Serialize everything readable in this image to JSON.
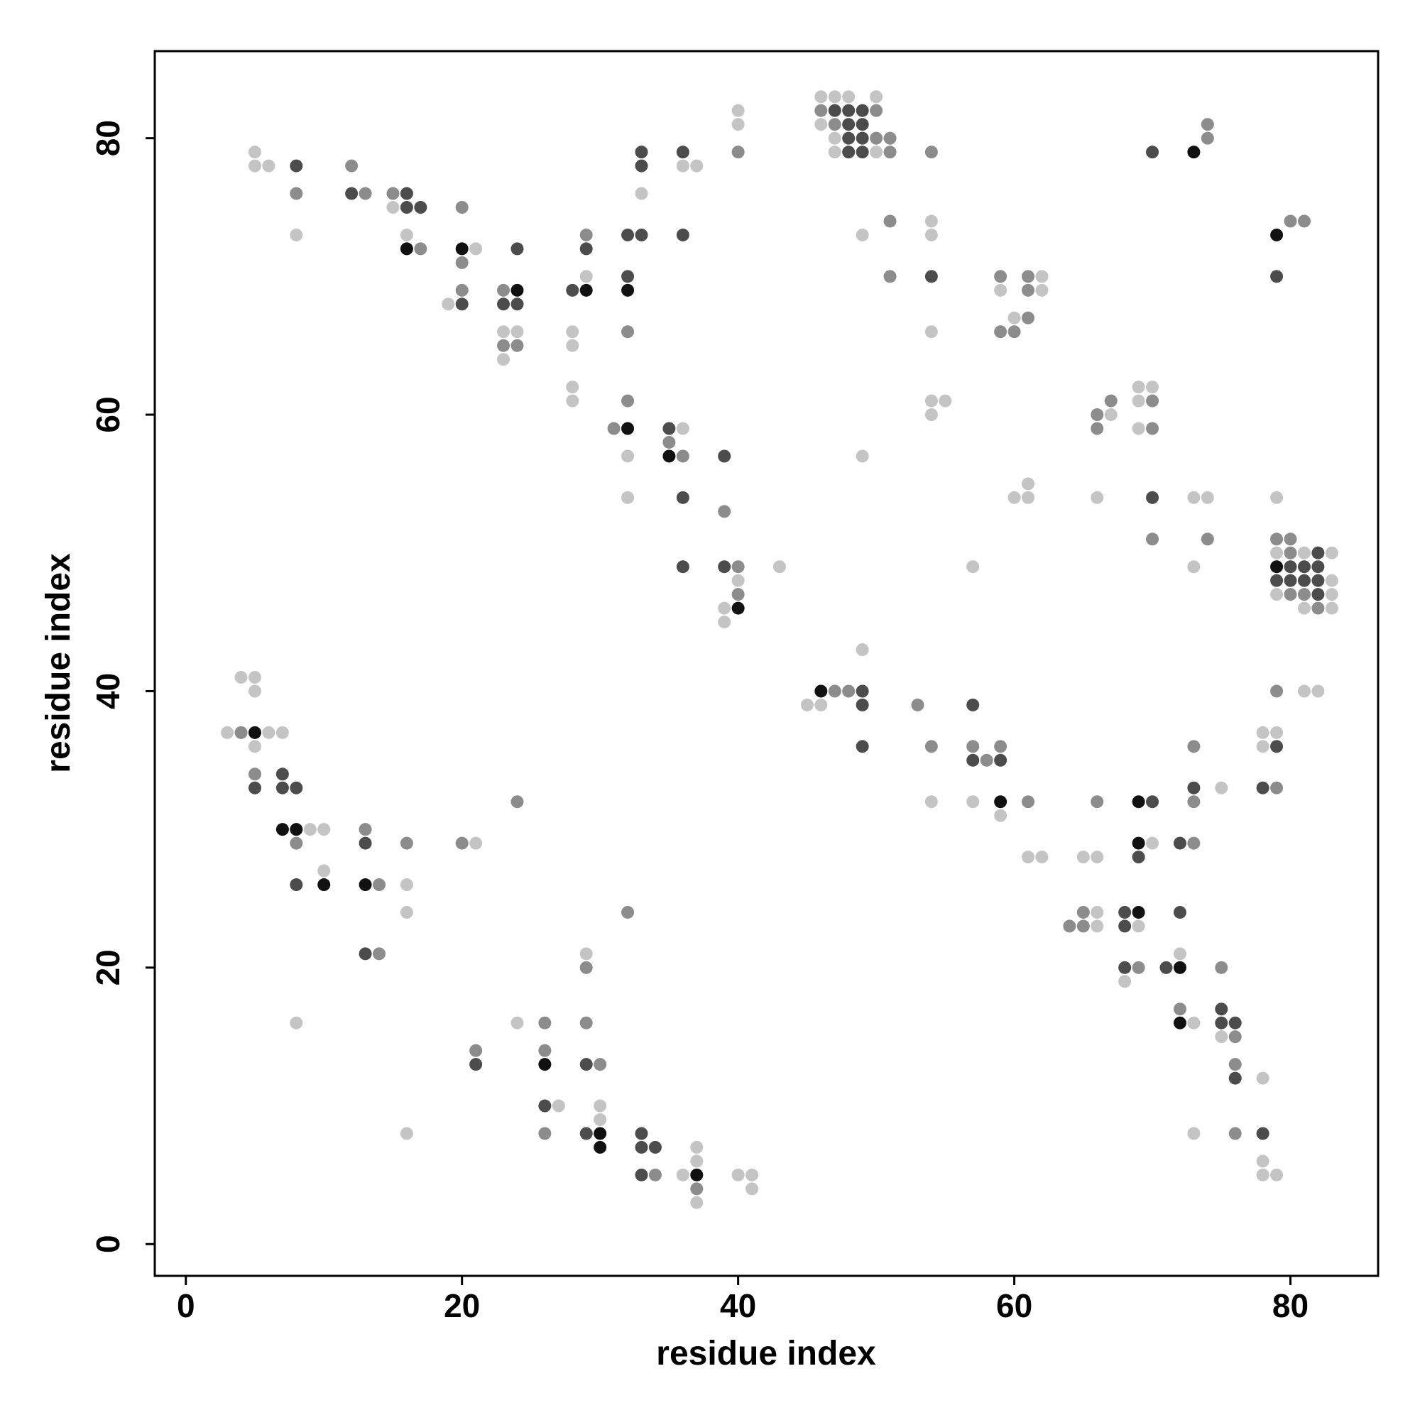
{
  "chart_data": {
    "type": "scatter",
    "x_label": "residue index",
    "y_label": "residue index",
    "xlim": [
      -2.25,
      86.35
    ],
    "ylim": [
      -2.3,
      86.3
    ],
    "xticks": [
      0,
      20,
      40,
      60,
      80
    ],
    "yticks": [
      0,
      20,
      40,
      60,
      80
    ],
    "series": [
      {
        "color": "#c4c4c4",
        "x": [
          46,
          47,
          48,
          50,
          40,
          46,
          40,
          47,
          5,
          47,
          50,
          5,
          6,
          36,
          37,
          33,
          15,
          54,
          8,
          16,
          49,
          54,
          21,
          29,
          62,
          59,
          62,
          19,
          60,
          23,
          24,
          28,
          54,
          28,
          23,
          28,
          69,
          70,
          28,
          54,
          55,
          69,
          54,
          67,
          36,
          69,
          32,
          49,
          61,
          32,
          60,
          61,
          66,
          73,
          74,
          79,
          79,
          81,
          83,
          43,
          57,
          73,
          40,
          83,
          79,
          83,
          39,
          81,
          83,
          39,
          49,
          4,
          5,
          5,
          81,
          82,
          45,
          46,
          3,
          6,
          7,
          78,
          79,
          5,
          78,
          75,
          54,
          57,
          59,
          9,
          10,
          21,
          70,
          61,
          62,
          65,
          66,
          10,
          16,
          16,
          66,
          66,
          69,
          29,
          72,
          68,
          8,
          24,
          73,
          75,
          78,
          27,
          30,
          30,
          16,
          73,
          37,
          37,
          78,
          36,
          40,
          41,
          78,
          79,
          41,
          37
        ],
        "y": [
          83,
          83,
          83,
          83,
          82,
          81,
          81,
          80,
          79,
          79,
          79,
          78,
          78,
          78,
          78,
          76,
          75,
          74,
          73,
          73,
          73,
          73,
          72,
          70,
          70,
          69,
          69,
          68,
          67,
          66,
          66,
          66,
          66,
          65,
          64,
          62,
          62,
          62,
          61,
          61,
          61,
          61,
          60,
          60,
          59,
          59,
          57,
          57,
          55,
          54,
          54,
          54,
          54,
          54,
          54,
          54,
          50,
          50,
          50,
          49,
          49,
          49,
          48,
          48,
          47,
          47,
          46,
          46,
          46,
          45,
          43,
          41,
          41,
          40,
          40,
          40,
          39,
          39,
          37,
          37,
          37,
          37,
          37,
          36,
          36,
          33,
          32,
          32,
          31,
          30,
          30,
          29,
          29,
          28,
          28,
          28,
          28,
          27,
          26,
          24,
          24,
          23,
          23,
          21,
          21,
          19,
          16,
          16,
          16,
          15,
          12,
          10,
          10,
          9,
          8,
          8,
          7,
          6,
          6,
          5,
          5,
          5,
          5,
          5,
          4,
          3
        ]
      },
      {
        "color": "#8c8c8c",
        "x": [
          46,
          50,
          47,
          74,
          50,
          51,
          74,
          40,
          51,
          54,
          12,
          8,
          13,
          15,
          20,
          51,
          80,
          81,
          29,
          17,
          20,
          51,
          59,
          61,
          20,
          23,
          61,
          61,
          32,
          59,
          60,
          23,
          24,
          32,
          67,
          70,
          66,
          31,
          66,
          70,
          35,
          36,
          39,
          70,
          74,
          79,
          80,
          80,
          40,
          40,
          80,
          81,
          82,
          47,
          48,
          79,
          53,
          4,
          54,
          57,
          59,
          73,
          58,
          5,
          79,
          24,
          61,
          66,
          73,
          13,
          8,
          16,
          20,
          73,
          14,
          32,
          65,
          64,
          65,
          14,
          29,
          69,
          75,
          72,
          26,
          29,
          76,
          21,
          26,
          30,
          76,
          26,
          76,
          34,
          37
        ],
        "y": [
          82,
          82,
          81,
          81,
          80,
          80,
          80,
          79,
          79,
          79,
          78,
          76,
          76,
          76,
          75,
          74,
          74,
          74,
          73,
          72,
          71,
          70,
          70,
          70,
          69,
          69,
          69,
          67,
          66,
          66,
          66,
          65,
          65,
          61,
          61,
          61,
          60,
          59,
          59,
          59,
          58,
          57,
          53,
          51,
          51,
          51,
          51,
          50,
          49,
          47,
          47,
          47,
          46,
          40,
          40,
          40,
          39,
          37,
          36,
          36,
          36,
          36,
          35,
          34,
          33,
          32,
          32,
          32,
          32,
          30,
          29,
          29,
          29,
          29,
          26,
          24,
          24,
          23,
          23,
          21,
          20,
          20,
          20,
          17,
          16,
          16,
          15,
          14,
          14,
          13,
          13,
          8,
          8,
          5,
          4
        ]
      },
      {
        "color": "#4c4c4c",
        "x": [
          47,
          48,
          49,
          48,
          49,
          48,
          49,
          33,
          36,
          48,
          49,
          70,
          8,
          33,
          12,
          16,
          16,
          17,
          32,
          33,
          36,
          24,
          29,
          32,
          54,
          79,
          28,
          20,
          23,
          24,
          35,
          39,
          36,
          70,
          82,
          36,
          39,
          80,
          81,
          82,
          79,
          80,
          81,
          82,
          82,
          49,
          49,
          57,
          49,
          79,
          57,
          59,
          7,
          5,
          7,
          8,
          73,
          78,
          70,
          13,
          72,
          69,
          8,
          68,
          72,
          68,
          13,
          68,
          71,
          75,
          75,
          76,
          21,
          29,
          76,
          26,
          29,
          33,
          78,
          33,
          34,
          33
        ],
        "y": [
          82,
          82,
          82,
          81,
          81,
          80,
          80,
          79,
          79,
          79,
          79,
          79,
          78,
          78,
          76,
          76,
          75,
          75,
          73,
          73,
          73,
          72,
          72,
          70,
          70,
          70,
          69,
          68,
          68,
          68,
          59,
          57,
          54,
          54,
          50,
          49,
          49,
          49,
          49,
          49,
          48,
          48,
          48,
          48,
          47,
          40,
          39,
          39,
          36,
          36,
          35,
          35,
          34,
          33,
          33,
          33,
          33,
          33,
          32,
          29,
          29,
          28,
          26,
          24,
          24,
          23,
          21,
          20,
          20,
          17,
          16,
          16,
          13,
          13,
          12,
          10,
          8,
          8,
          8,
          7,
          7,
          5
        ]
      },
      {
        "color": "#111111",
        "x": [
          73,
          79,
          16,
          20,
          24,
          29,
          32,
          32,
          35,
          79,
          40,
          46,
          5,
          59,
          69,
          7,
          8,
          69,
          10,
          13,
          69,
          72,
          72,
          26,
          30,
          30,
          37
        ],
        "y": [
          79,
          73,
          72,
          72,
          69,
          69,
          69,
          59,
          57,
          49,
          46,
          40,
          37,
          32,
          32,
          30,
          30,
          29,
          26,
          26,
          24,
          20,
          16,
          13,
          8,
          7,
          5
        ]
      }
    ]
  }
}
